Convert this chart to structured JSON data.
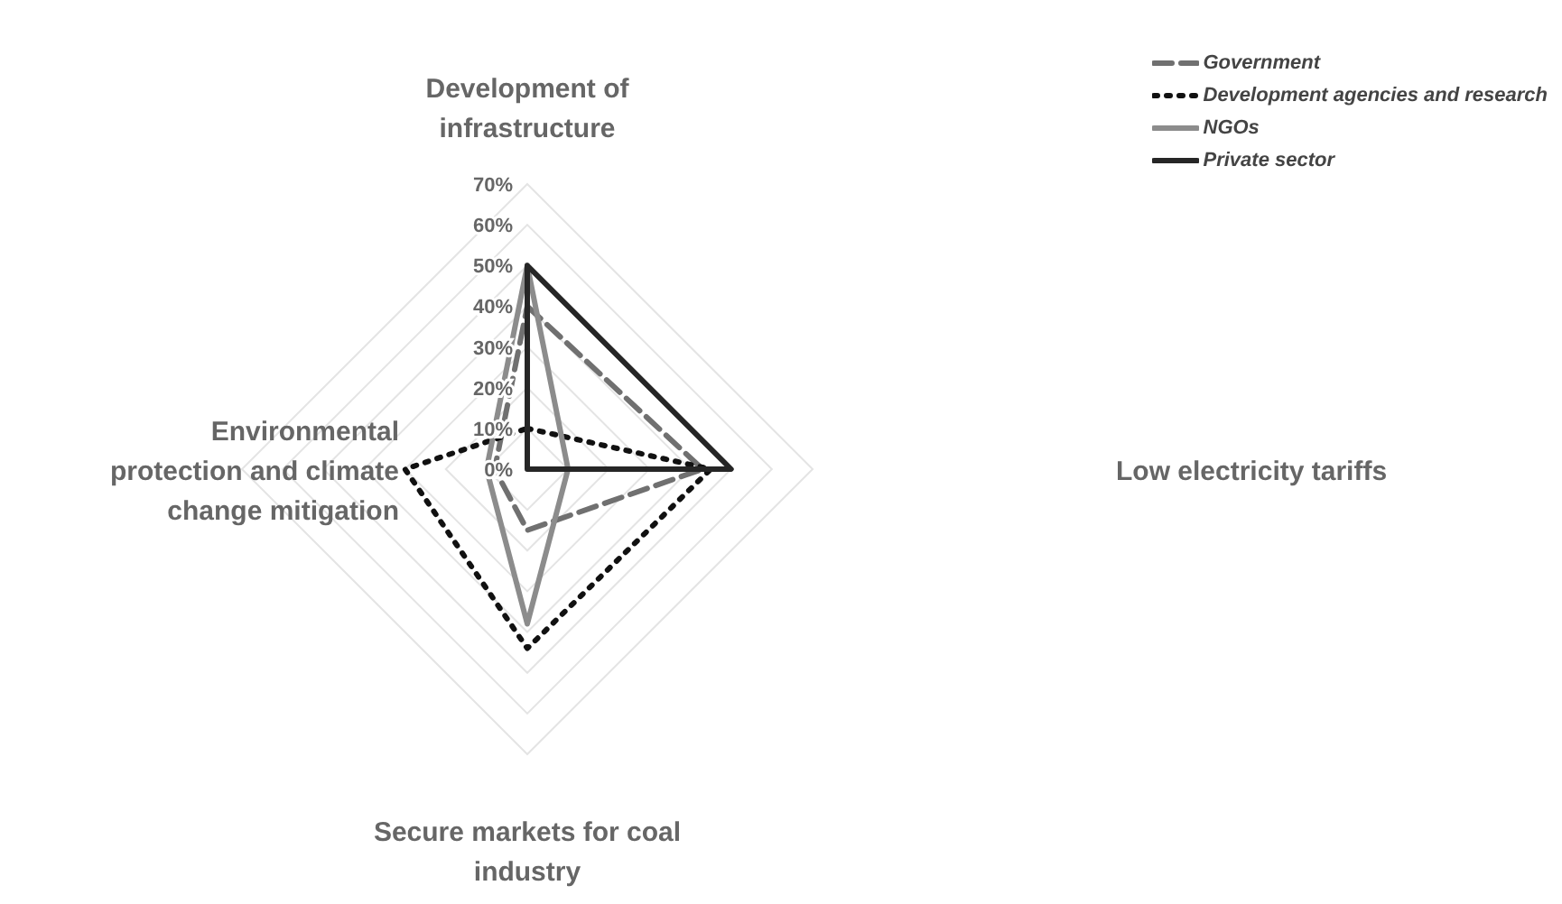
{
  "chart_data": {
    "type": "radar",
    "categories": [
      "Development of infrastructure",
      "Low electricity tariffs",
      "Secure markets for coal industry",
      "Environmental protection and climate change mitigation"
    ],
    "series": [
      {
        "name": "Government",
        "color": "#707070",
        "line_style": "dashed",
        "values": [
          40,
          43,
          15,
          8
        ]
      },
      {
        "name": "Development agencies and research",
        "color": "#111111",
        "line_style": "dotted",
        "values": [
          10,
          45,
          44,
          30
        ]
      },
      {
        "name": "NGOs",
        "color": "#8c8c8c",
        "line_style": "solid",
        "values": [
          50,
          10,
          38,
          10
        ]
      },
      {
        "name": "Private sector",
        "color": "#262626",
        "line_style": "solid",
        "values": [
          50,
          50,
          0,
          0
        ]
      }
    ],
    "ylim": [
      0,
      70
    ],
    "yticks": [
      {
        "value": 0,
        "label": "0%"
      },
      {
        "value": 10,
        "label": "10%"
      },
      {
        "value": 20,
        "label": "20%"
      },
      {
        "value": 30,
        "label": "30%"
      },
      {
        "value": 40,
        "label": "40%"
      },
      {
        "value": 50,
        "label": "50%"
      },
      {
        "value": 60,
        "label": "60%"
      },
      {
        "value": 70,
        "label": "70%"
      }
    ],
    "grid": true,
    "legend": "top right",
    "marker": "none"
  }
}
